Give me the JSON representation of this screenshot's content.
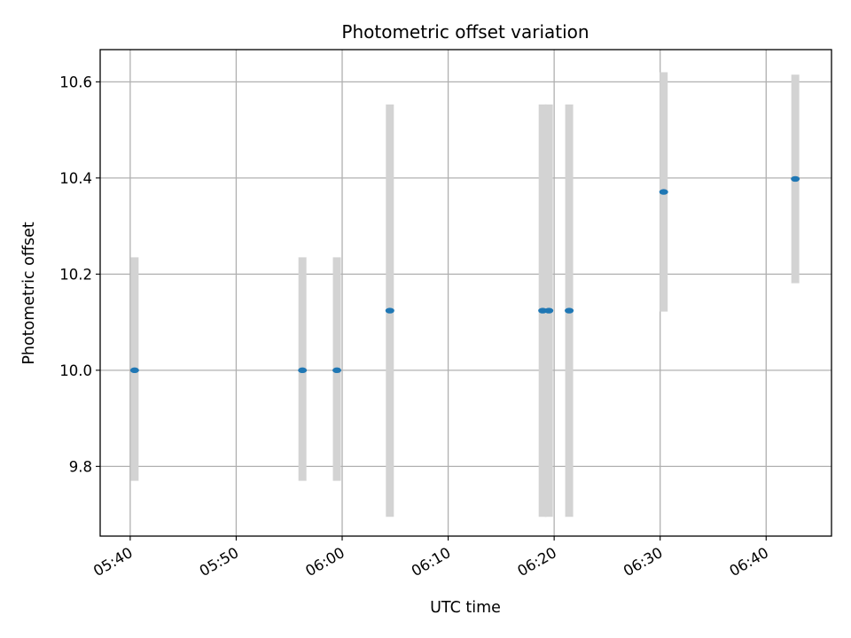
{
  "chart_data": {
    "type": "scatter",
    "title": "Photometric offset variation",
    "xlabel": "UTC time",
    "ylabel": "Photometric offset",
    "x_ticks": [
      "05:40",
      "05:50",
      "06:00",
      "06:10",
      "06:20",
      "06:30",
      "06:40"
    ],
    "y_ticks": [
      9.8,
      10.0,
      10.2,
      10.4,
      10.6
    ],
    "xlim": [
      "05:37:10",
      "06:46:10"
    ],
    "ylim": [
      9.655,
      10.667
    ],
    "grid": true,
    "colors": {
      "point": "#1f77b4",
      "errorbar": "#d3d3d3",
      "grid": "#b0b0b0"
    },
    "points": [
      {
        "time": "05:40:25",
        "value": 10.0,
        "err_low": 9.77,
        "err_high": 10.235
      },
      {
        "time": "05:56:15",
        "value": 10.0,
        "err_low": 9.77,
        "err_high": 10.235
      },
      {
        "time": "05:59:30",
        "value": 10.0,
        "err_low": 9.77,
        "err_high": 10.235
      },
      {
        "time": "06:04:30",
        "value": 10.124,
        "err_low": 9.695,
        "err_high": 10.553
      },
      {
        "time": "06:18:55",
        "value": 10.124,
        "err_low": 9.695,
        "err_high": 10.553
      },
      {
        "time": "06:19:30",
        "value": 10.124,
        "err_low": 9.695,
        "err_high": 10.553
      },
      {
        "time": "06:21:25",
        "value": 10.124,
        "err_low": 9.695,
        "err_high": 10.553
      },
      {
        "time": "06:30:20",
        "value": 10.371,
        "err_low": 10.122,
        "err_high": 10.62
      },
      {
        "time": "06:42:45",
        "value": 10.398,
        "err_low": 10.181,
        "err_high": 10.615
      }
    ]
  }
}
